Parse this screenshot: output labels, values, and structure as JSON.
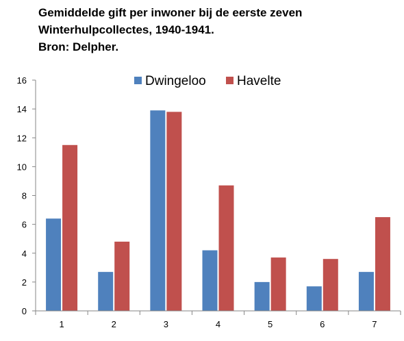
{
  "chart_data": {
    "type": "bar",
    "title_lines": [
      "Gemiddelde gift per inwoner bij de eerste zeven",
      "Winterhulpcollectes, 1940-1941.",
      "Bron: Delpher."
    ],
    "categories": [
      "1",
      "2",
      "3",
      "4",
      "5",
      "6",
      "7"
    ],
    "series": [
      {
        "name": "Dwingeloo",
        "color": "#4f81bd",
        "values": [
          6.4,
          2.7,
          13.9,
          4.2,
          2.0,
          1.7,
          2.7
        ]
      },
      {
        "name": "Havelte",
        "color": "#c0504d",
        "values": [
          11.5,
          4.8,
          13.8,
          8.7,
          3.7,
          3.6,
          6.5
        ]
      }
    ],
    "ylim": [
      0,
      16
    ],
    "yticks": [
      "0",
      "2",
      "4",
      "6",
      "8",
      "10",
      "12",
      "14",
      "16"
    ],
    "grid": false,
    "legend": "top-center"
  }
}
